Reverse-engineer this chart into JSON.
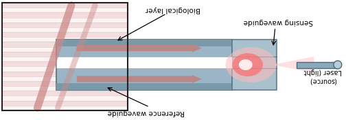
{
  "bg_color": "#ffffff",
  "stripe_light": "#f2dede",
  "stripe_mid": "#e8c8c8",
  "stripe_dark": "#d4a8a8",
  "waveguide_color": "#9ab5c5",
  "waveguide_edge": "#5a7585",
  "waveguide_dark": "#7a9aaa",
  "white_strip": "#ffffff",
  "arrow_fill": "#b88888",
  "beam_outer": "#ffaaaa",
  "beam_mid": "#ff7777",
  "beam_core": "#ffffff",
  "fiber_color": "#8aaabb",
  "fiber_edge": "#4a6a7a",
  "diag_color": "#cc8888",
  "text_color": "#000000",
  "label_bio": "Biological layer",
  "label_sensing": "Sensing waveguide",
  "label_ref": "Reference waveguide",
  "label_laser1": "Laser (light",
  "label_laser2": "(source)"
}
